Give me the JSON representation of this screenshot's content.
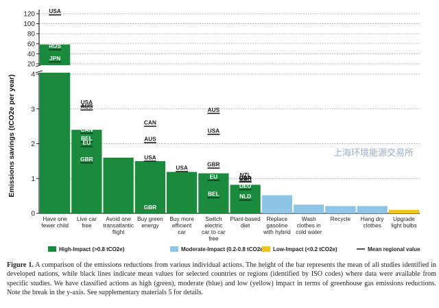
{
  "chart_data": {
    "type": "bar",
    "ylabel": "Emissions savings (tCO2e per year)",
    "y_break": {
      "lower_range": [
        0,
        4
      ],
      "upper_range": [
        20,
        120
      ],
      "lower_ticks": [
        0,
        1,
        2,
        3,
        4
      ],
      "upper_ticks": [
        20,
        40,
        60,
        80,
        100,
        120
      ]
    },
    "categories": [
      "Have one fewer child",
      "Live car free",
      "Avoid one transatlantic flight",
      "Buy green energy",
      "Buy more efficient car",
      "Switch electric car to car free",
      "Plant-based diet",
      "Replace gasoline with hybrid",
      "Wash clothes in cold water",
      "Recycle",
      "Hang dry clothes",
      "Upgrade light bulbs"
    ],
    "values": [
      58.6,
      2.4,
      1.6,
      1.5,
      1.19,
      1.15,
      0.82,
      0.52,
      0.25,
      0.21,
      0.21,
      0.1
    ],
    "impact": [
      "high",
      "high",
      "high",
      "high",
      "high",
      "high",
      "high",
      "moderate",
      "moderate",
      "moderate",
      "moderate",
      "low"
    ],
    "regional_means": [
      {
        "bar": 0,
        "items": [
          {
            "code": "USA",
            "value": 117.7
          },
          {
            "code": "RUS",
            "value": 48
          },
          {
            "code": "JPN",
            "value": 23.7
          }
        ]
      },
      {
        "bar": 1,
        "items": [
          {
            "code": "USA",
            "value": 3.08
          },
          {
            "code": "AUS",
            "value": 2.97
          },
          {
            "code": "CAN",
            "value": 2.3
          },
          {
            "code": "BEL",
            "value": 2.05
          },
          {
            "code": "EU",
            "value": 1.92
          },
          {
            "code": "GBR",
            "value": 1.45
          }
        ]
      },
      {
        "bar": 3,
        "items": [
          {
            "code": "CAN",
            "value": 2.5
          },
          {
            "code": "AUS",
            "value": 2.03
          },
          {
            "code": "USA",
            "value": 1.5
          },
          {
            "code": "GBR",
            "value": 0
          }
        ]
      },
      {
        "bar": 4,
        "items": [
          {
            "code": "USA",
            "value": 1.2
          }
        ]
      },
      {
        "bar": 5,
        "items": [
          {
            "code": "AUS",
            "value": 2.87
          },
          {
            "code": "USA",
            "value": 2.27
          },
          {
            "code": "GBR",
            "value": 1.3
          },
          {
            "code": "EU",
            "value": 0.95
          },
          {
            "code": "BEL",
            "value": 0.45
          }
        ]
      },
      {
        "bar": 6,
        "items": [
          {
            "code": "NZL",
            "value": 1.0
          },
          {
            "code": "USA",
            "value": 0.92
          },
          {
            "code": "GBR",
            "value": 0.9
          },
          {
            "code": "DEU",
            "value": 0.68
          },
          {
            "code": "NLD",
            "value": 0.38
          }
        ]
      }
    ],
    "legend": [
      {
        "label": "High-Impact (>0.8 tCO2e)",
        "color": "#1a8b3c",
        "kind": "box"
      },
      {
        "label": "Moderate-Impact (0.2-0.8 tCO2e)",
        "color": "#8ec4e6",
        "kind": "box"
      },
      {
        "label": "Low-Impact (<0.2 tCO2e)",
        "color": "#f0c419",
        "kind": "box"
      },
      {
        "label": "Mean regional value",
        "color": "#222222",
        "kind": "line"
      }
    ]
  },
  "colors": {
    "high": "#1a8b3c",
    "moderate": "#8ec4e6",
    "low": "#f0c419",
    "grid": "#888888"
  },
  "caption": {
    "label": "Figure 1.",
    "text": "A comparison of the emissions reductions from various individual actions. The height of the bar represents the mean of all studies identified in developed nations, while black lines indicate mean values for selected countries or regions (identified by ISO codes) where data were available from specific studies. We have classified actions as high (green), moderate (blue) and low (yellow) impact in terms of greenhouse gas emissions reductions. Note the break in the y-axis. See supplementary materials 5 for details."
  },
  "watermark": "上海环境能源交易所"
}
